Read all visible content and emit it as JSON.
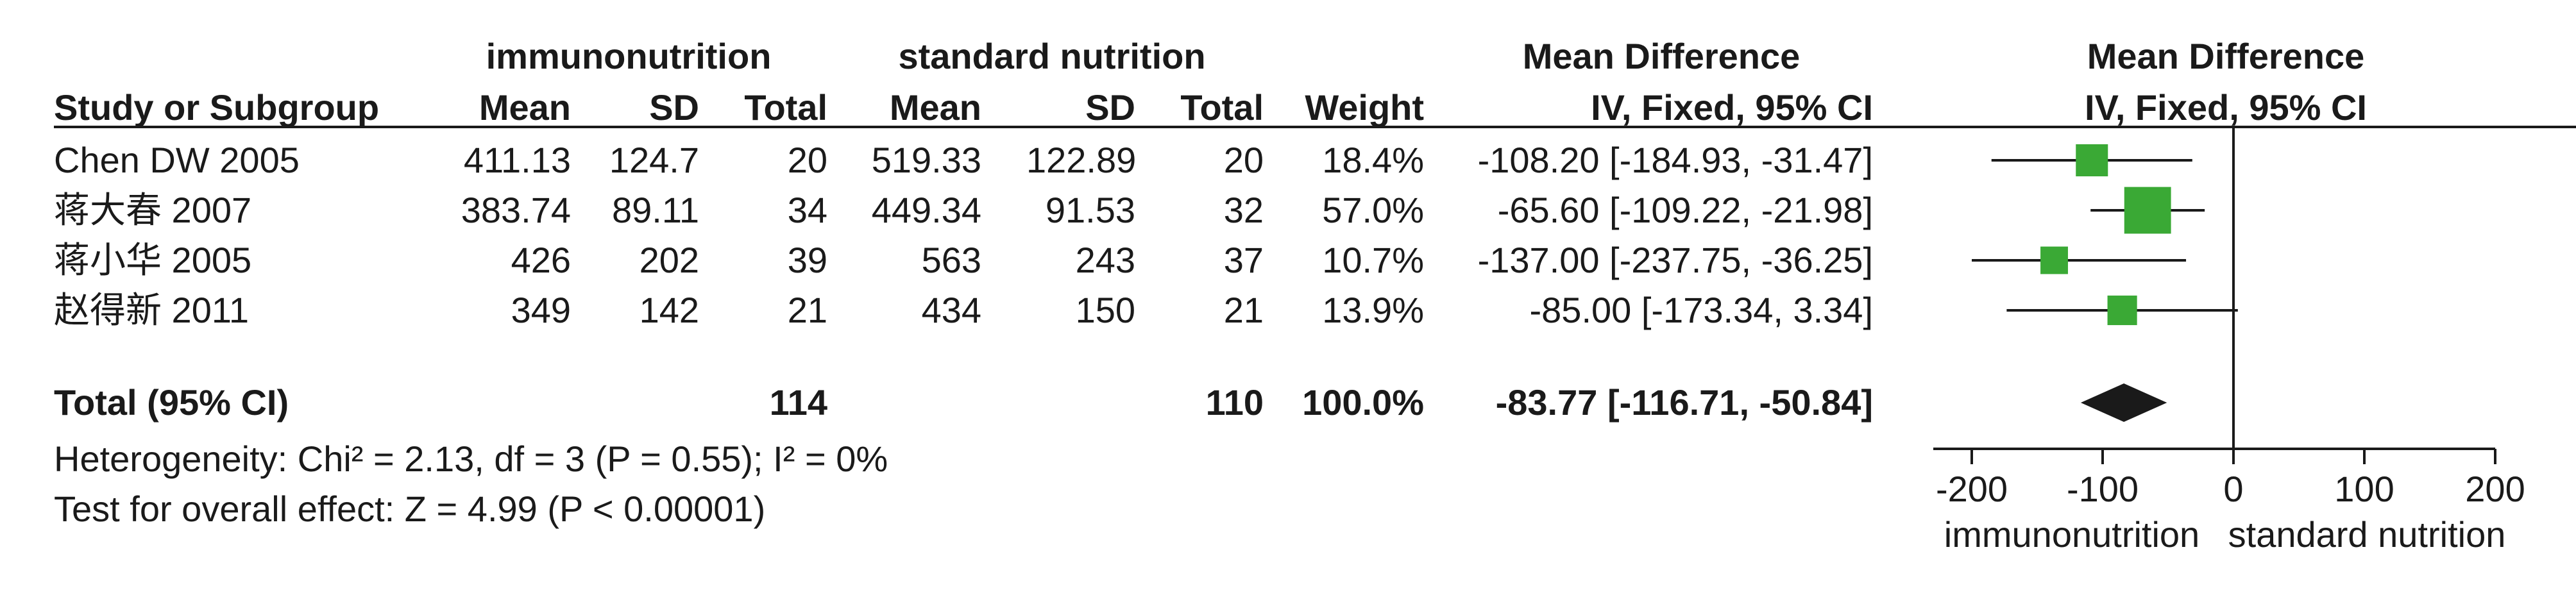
{
  "header": {
    "group_experimental": "immunonutrition",
    "group_control": "standard nutrition",
    "study_col": "Study or Subgroup",
    "mean_col": "Mean",
    "sd_col": "SD",
    "total_col": "Total",
    "weight_col": "Weight",
    "md_title": "Mean Difference",
    "md_method": "IV, Fixed, 95% CI"
  },
  "total": {
    "label": "Total (95% CI)",
    "exp_total": "114",
    "ctl_total": "110",
    "weight": "100.0%",
    "ci_text": "-83.77 [-116.71, -50.84]"
  },
  "footnotes": {
    "heterogeneity": "Heterogeneity: Chi² = 2.13, df = 3 (P = 0.55); I² = 0%",
    "overall": "Test for overall effect: Z = 4.99 (P < 0.00001)"
  },
  "axis_labels": {
    "left": "immunonutrition",
    "right": "standard nutrition"
  },
  "colors": {
    "square": "#3aa935",
    "diamond": "#1a1a1a",
    "line": "#1a1a1a"
  },
  "chart_data": {
    "type": "forest",
    "x_range": [
      -200,
      200
    ],
    "ticks": [
      -200,
      -100,
      0,
      100,
      200
    ],
    "studies": [
      {
        "study": "Chen DW 2005",
        "exp_mean": "411.13",
        "exp_sd": "124.7",
        "exp_total": "20",
        "ctl_mean": "519.33",
        "ctl_sd": "122.89",
        "ctl_total": "20",
        "weight": "18.4%",
        "ci_text": "-108.20 [-184.93, -31.47]",
        "md": -108.2,
        "lo": -184.93,
        "hi": -31.47,
        "w": 18.4
      },
      {
        "study": "蒋大春 2007",
        "exp_mean": "383.74",
        "exp_sd": "89.11",
        "exp_total": "34",
        "ctl_mean": "449.34",
        "ctl_sd": "91.53",
        "ctl_total": "32",
        "weight": "57.0%",
        "ci_text": "-65.60 [-109.22, -21.98]",
        "md": -65.6,
        "lo": -109.22,
        "hi": -21.98,
        "w": 57.0
      },
      {
        "study": "蒋小华 2005",
        "exp_mean": "426",
        "exp_sd": "202",
        "exp_total": "39",
        "ctl_mean": "563",
        "ctl_sd": "243",
        "ctl_total": "37",
        "weight": "10.7%",
        "ci_text": "-137.00 [-237.75, -36.25]",
        "md": -137.0,
        "lo": -237.75,
        "hi": -36.25,
        "w": 10.7
      },
      {
        "study": "赵得新 2011",
        "exp_mean": "349",
        "exp_sd": "142",
        "exp_total": "21",
        "ctl_mean": "434",
        "ctl_sd": "150",
        "ctl_total": "21",
        "weight": "13.9%",
        "ci_text": "-85.00 [-173.34, 3.34]",
        "md": -85.0,
        "lo": -173.34,
        "hi": 3.34,
        "w": 13.9
      }
    ],
    "pooled": {
      "md": -83.77,
      "lo": -116.71,
      "hi": -50.84
    }
  }
}
